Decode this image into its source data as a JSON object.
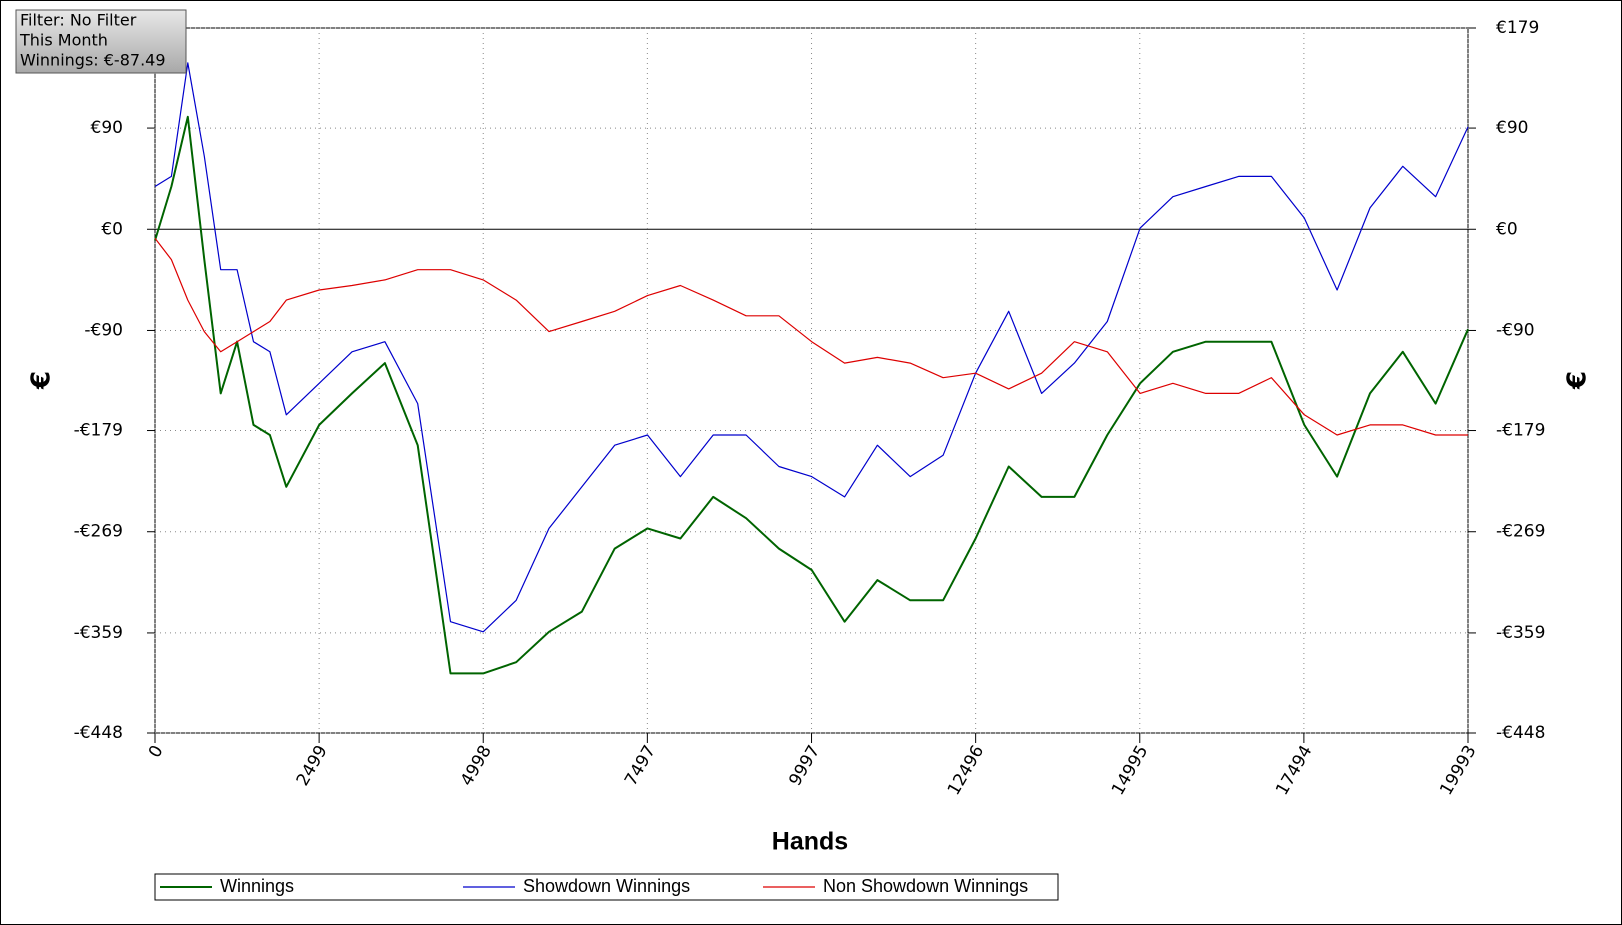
{
  "chart_data": {
    "type": "line",
    "info": [
      "Filter: No Filter",
      "This Month",
      "Winnings: €-87.49"
    ],
    "xlabel": "Hands",
    "ylabel": "€",
    "y2label": "€",
    "x": [
      0,
      250,
      500,
      750,
      1000,
      1250,
      1500,
      1750,
      2000,
      2500,
      3000,
      3500,
      4000,
      4500,
      4998,
      5500,
      6000,
      6500,
      7000,
      7500,
      8000,
      8500,
      9000,
      9500,
      10000,
      10500,
      11000,
      11500,
      12000,
      12496,
      13000,
      13500,
      14000,
      14500,
      15000,
      15500,
      16000,
      16500,
      17000,
      17500,
      18000,
      18500,
      19000,
      19500,
      19993
    ],
    "series": [
      {
        "name": "Winnings",
        "color": "#006400",
        "values": [
          -10,
          38,
          100,
          -27,
          -146,
          -100,
          -174,
          -183,
          -229,
          -174,
          -146,
          -119,
          -192,
          -395,
          -395,
          -385,
          -358,
          -340,
          -284,
          -266,
          -275,
          -238,
          -257,
          -284,
          -303,
          -349,
          -312,
          -330,
          -330,
          -275,
          -211,
          -238,
          -238,
          -183,
          -137,
          -109,
          -100,
          -100,
          -100,
          -174,
          -220,
          -146,
          -109,
          -155,
          -89
        ]
      },
      {
        "name": "Showdown Winnings",
        "color": "#0000cc",
        "values": [
          38,
          47,
          148,
          65,
          -36,
          -36,
          -100,
          -109,
          -165,
          -137,
          -109,
          -100,
          -155,
          -349,
          -358,
          -330,
          -266,
          -229,
          -192,
          -183,
          -220,
          -183,
          -183,
          -211,
          -220,
          -238,
          -192,
          -220,
          -201,
          -128,
          -73,
          -146,
          -119,
          -82,
          1,
          29,
          38,
          47,
          47,
          10,
          -54,
          19,
          56,
          29,
          91
        ]
      },
      {
        "name": "Non Showdown Winnings",
        "color": "#dd0000",
        "values": [
          -8,
          -27,
          -63,
          -91,
          -109,
          -100,
          -91,
          -82,
          -63,
          -54,
          -50,
          -45,
          -36,
          -36,
          -45,
          -63,
          -91,
          -82,
          -73,
          -59,
          -50,
          -63,
          -77,
          -77,
          -100,
          -119,
          -114,
          -119,
          -132,
          -128,
          -142,
          -128,
          -100,
          -109,
          -146,
          -137,
          -146,
          -146,
          -132,
          -165,
          -183,
          -174,
          -174,
          -183,
          -183
        ]
      }
    ],
    "xlim": [
      0,
      19993
    ],
    "xticks": [
      0,
      2499,
      4998,
      7497,
      9997,
      12496,
      14995,
      17494,
      19993
    ],
    "ylim": [
      -448,
      179
    ],
    "yticks": [
      {
        "value": -448,
        "label": "-€448"
      },
      {
        "value": -359,
        "label": "-€359"
      },
      {
        "value": -269,
        "label": "-€269"
      },
      {
        "value": -179,
        "label": "-€179"
      },
      {
        "value": -90,
        "label": "-€90"
      },
      {
        "value": 0,
        "label": "€0"
      },
      {
        "value": 90,
        "label": "€90"
      },
      {
        "value": 179,
        "label": "€179"
      }
    ],
    "grid": true
  }
}
